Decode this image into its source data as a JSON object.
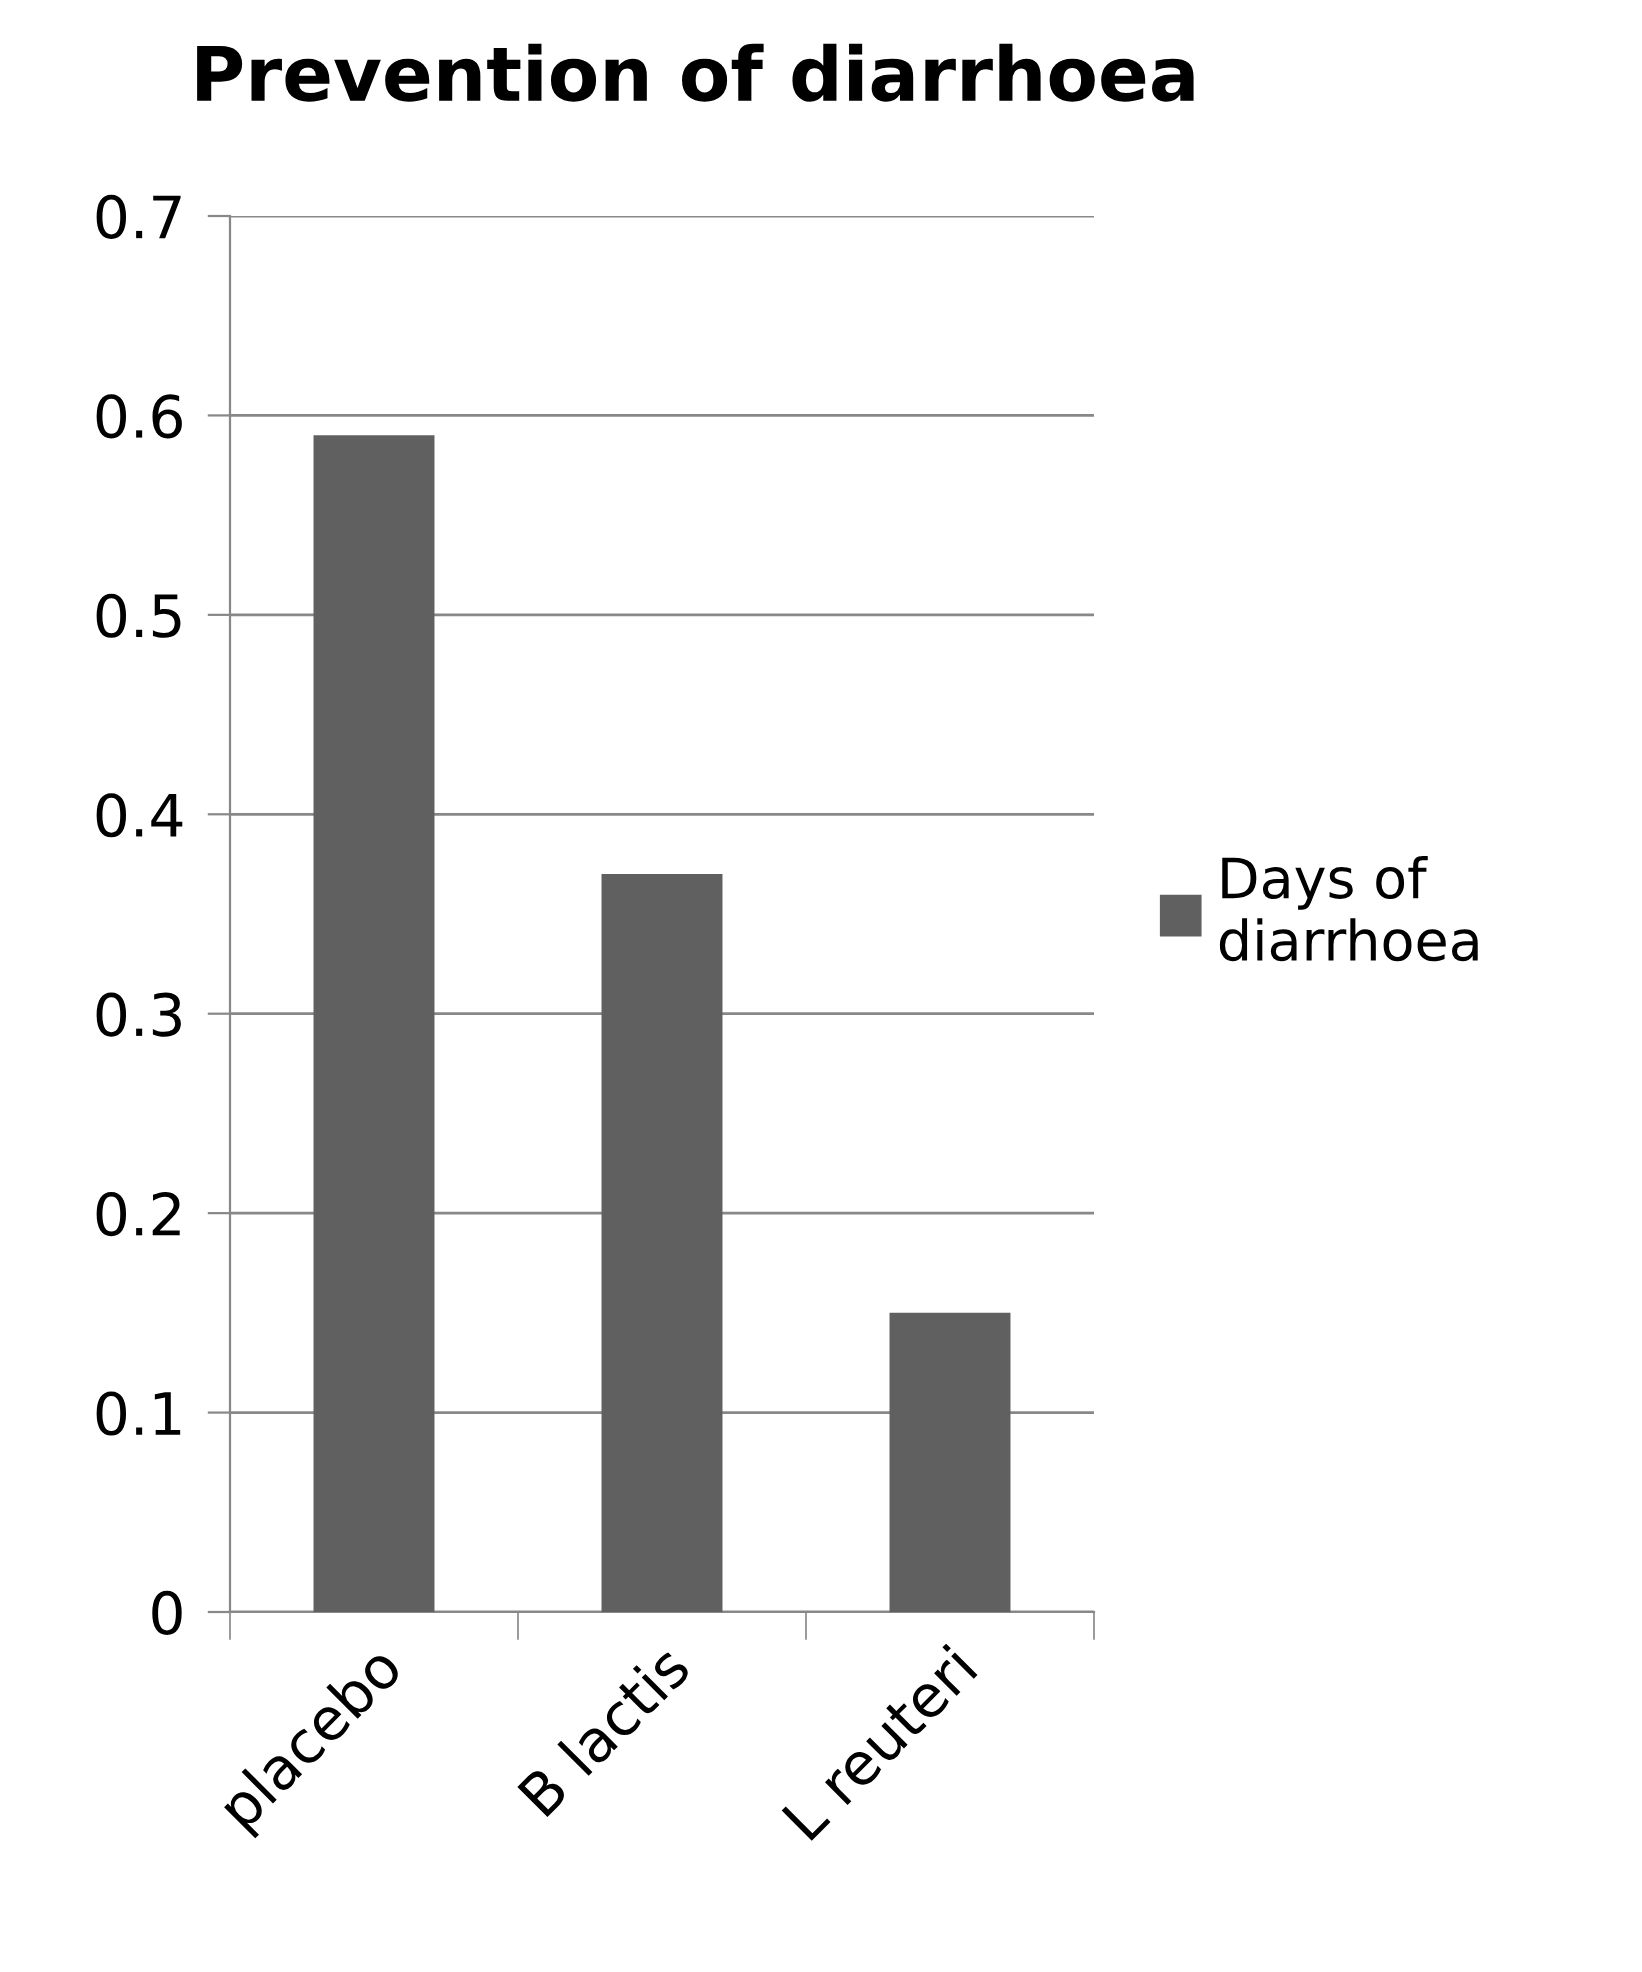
{
  "chart_data": {
    "type": "bar",
    "title": "Prevention of diarrhoea",
    "categories": [
      "placebo",
      "B lactis",
      "L reuteri"
    ],
    "series": [
      {
        "name": "Days of\ndiarrhoea",
        "color": "#606060",
        "values": [
          0.59,
          0.37,
          0.15
        ]
      }
    ],
    "ylim": [
      0,
      0.7
    ],
    "yticks": [
      0,
      0.1,
      0.2,
      0.3,
      0.4,
      0.5,
      0.6,
      0.7
    ],
    "grid": "y",
    "legend": "right"
  }
}
